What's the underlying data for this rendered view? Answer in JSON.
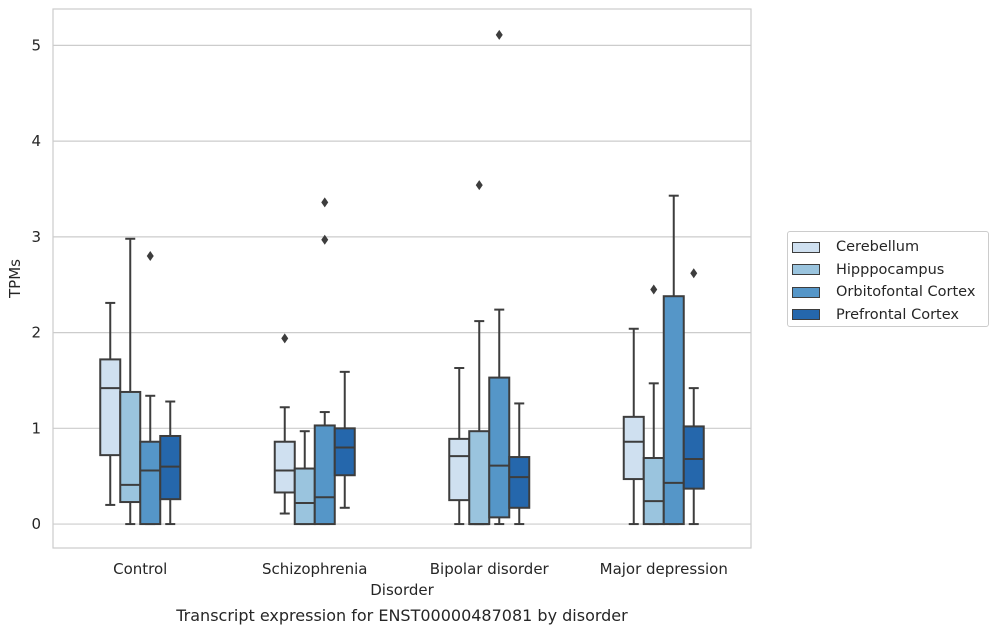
{
  "chart_data": {
    "type": "boxplot",
    "title": "",
    "xlabel": "Disorder",
    "ylabel": "TPMs",
    "ylim": [
      -0.25,
      5.38
    ],
    "yticks": [
      0,
      1,
      2,
      3,
      4,
      5
    ],
    "grid": "horizontal",
    "legend_placement": "right",
    "categories": [
      "Control",
      "Schizophrenia",
      "Bipolar disorder",
      "Major depression"
    ],
    "series": [
      {
        "name": "Cerebellum",
        "color": "#cfe0f0",
        "boxes": [
          {
            "whislo": 0.2,
            "q1": 0.72,
            "med": 1.42,
            "q3": 1.72,
            "whishi": 2.31,
            "fliers": []
          },
          {
            "whislo": 0.11,
            "q1": 0.33,
            "med": 0.56,
            "q3": 0.86,
            "whishi": 1.22,
            "fliers": [
              1.94
            ]
          },
          {
            "whislo": 0.0,
            "q1": 0.25,
            "med": 0.71,
            "q3": 0.89,
            "whishi": 1.63,
            "fliers": []
          },
          {
            "whislo": 0.0,
            "q1": 0.47,
            "med": 0.86,
            "q3": 1.12,
            "whishi": 2.04,
            "fliers": []
          }
        ]
      },
      {
        "name": "Hipppocampus",
        "color": "#9ac4de",
        "boxes": [
          {
            "whislo": 0.0,
            "q1": 0.23,
            "med": 0.41,
            "q3": 1.38,
            "whishi": 2.98,
            "fliers": []
          },
          {
            "whislo": 0.0,
            "q1": 0.0,
            "med": 0.22,
            "q3": 0.58,
            "whishi": 0.97,
            "fliers": []
          },
          {
            "whislo": 0.0,
            "q1": 0.0,
            "med": 0.0,
            "q3": 0.97,
            "whishi": 2.12,
            "fliers": [
              3.54
            ]
          },
          {
            "whislo": 0.0,
            "q1": 0.0,
            "med": 0.24,
            "q3": 0.69,
            "whishi": 1.47,
            "fliers": [
              2.45
            ]
          }
        ]
      },
      {
        "name": "Orbitofontal Cortex",
        "color": "#5596c8",
        "boxes": [
          {
            "whislo": 0.0,
            "q1": 0.0,
            "med": 0.56,
            "q3": 0.86,
            "whishi": 1.34,
            "fliers": [
              2.8
            ]
          },
          {
            "whislo": 0.0,
            "q1": 0.0,
            "med": 0.28,
            "q3": 1.03,
            "whishi": 1.17,
            "fliers": [
              2.97,
              3.36
            ]
          },
          {
            "whislo": 0.0,
            "q1": 0.07,
            "med": 0.61,
            "q3": 1.53,
            "whishi": 2.24,
            "fliers": [
              5.11
            ]
          },
          {
            "whislo": 0.0,
            "q1": 0.0,
            "med": 0.43,
            "q3": 2.38,
            "whishi": 3.43,
            "fliers": []
          }
        ]
      },
      {
        "name": "Prefrontal Cortex",
        "color": "#2567ac",
        "boxes": [
          {
            "whislo": 0.0,
            "q1": 0.26,
            "med": 0.6,
            "q3": 0.92,
            "whishi": 1.28,
            "fliers": []
          },
          {
            "whislo": 0.17,
            "q1": 0.51,
            "med": 0.8,
            "q3": 1.0,
            "whishi": 1.59,
            "fliers": []
          },
          {
            "whislo": 0.0,
            "q1": 0.17,
            "med": 0.49,
            "q3": 0.7,
            "whishi": 1.26,
            "fliers": []
          },
          {
            "whislo": 0.0,
            "q1": 0.37,
            "med": 0.68,
            "q3": 1.02,
            "whishi": 1.42,
            "fliers": [
              2.62
            ]
          }
        ]
      }
    ]
  },
  "caption": "Transcript expression for ENST00000487081 by disorder"
}
